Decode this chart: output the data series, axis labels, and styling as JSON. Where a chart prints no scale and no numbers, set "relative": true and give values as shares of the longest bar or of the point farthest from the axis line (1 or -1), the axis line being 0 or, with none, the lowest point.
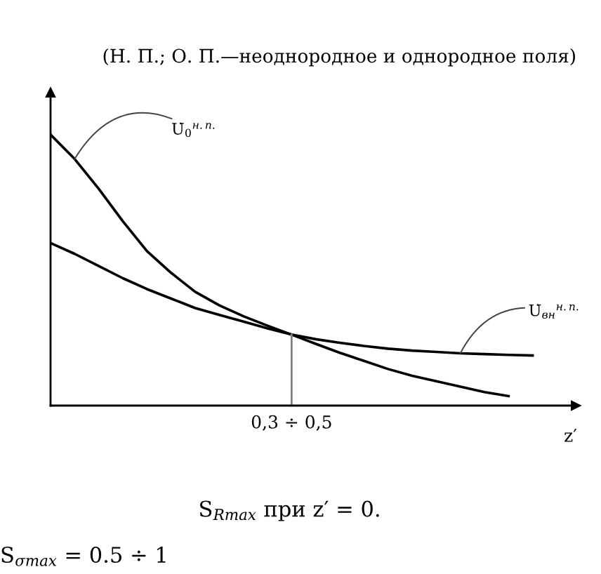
{
  "chart_data": {
    "type": "line",
    "relative": true,
    "title": "(Н. П.; О. П.—неоднородное и однородное поля)",
    "xlabel": "z′",
    "categories": [
      null,
      null,
      null,
      null,
      null,
      null,
      null,
      null,
      null,
      null,
      null,
      null,
      null,
      null,
      null,
      null,
      null,
      null,
      null,
      null,
      null
    ],
    "series": [
      {
        "name": "U̇$_{0}$$^{н.п.}$",
        "color": "#000000",
        "values": [
          1.0,
          0.91,
          0.8,
          0.68,
          0.57,
          0.49,
          0.42,
          0.37,
          0.33,
          0.295,
          0.262,
          0.228,
          0.195,
          0.165,
          0.135,
          0.11,
          0.09,
          0.07,
          0.05,
          0.035,
          null
        ]
      },
      {
        "name": "U̇$_{вн}$$^{н.п.}$",
        "color": "#000000",
        "values": [
          0.6,
          0.56,
          0.515,
          0.47,
          0.43,
          0.395,
          0.36,
          0.335,
          0.31,
          0.285,
          0.262,
          0.245,
          0.232,
          0.22,
          0.21,
          0.203,
          0.198,
          0.193,
          0.19,
          0.187,
          0.185
        ]
      }
    ],
    "annotations": [
      "0,3 ÷ 0,5",
      "S$_{Rmax}$ при z′ = 0.",
      "S$_{σmax}$ = 0.5 ÷ 1"
    ]
  }
}
